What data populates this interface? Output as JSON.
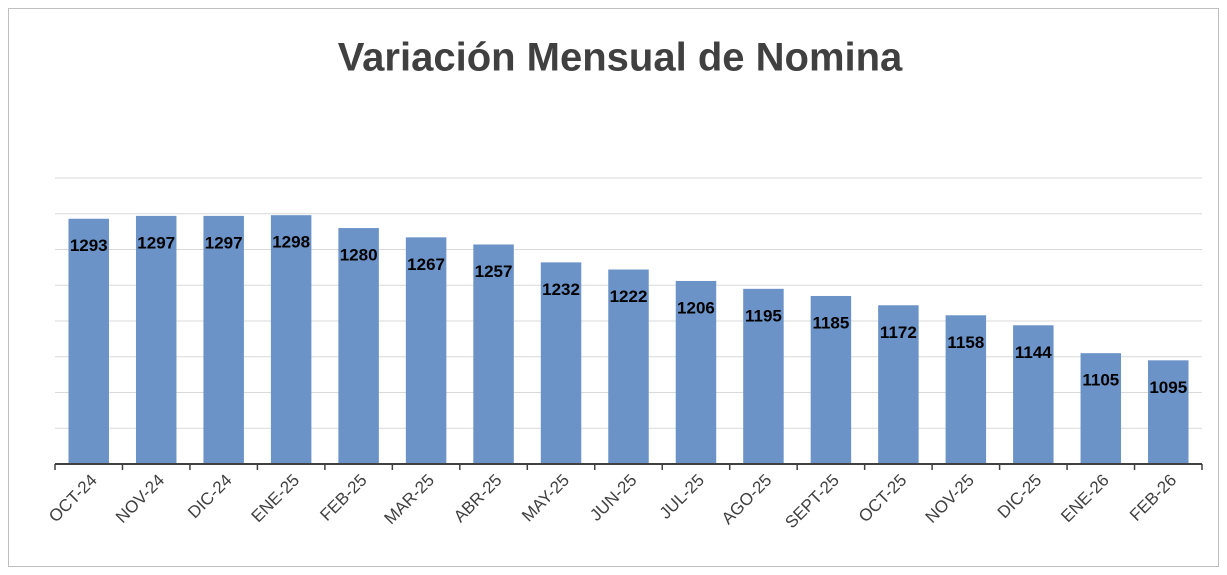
{
  "chart_data": {
    "type": "bar",
    "title": "Variación Mensual de Nomina",
    "categories": [
      "OCT-24",
      "NOV-24",
      "DIC-24",
      "ENE-25",
      "FEB-25",
      "MAR-25",
      "ABR-25",
      "MAY-25",
      "JUN-25",
      "JUL-25",
      "AGO-25",
      "SEPT-25",
      "OCT-25",
      "NOV-25",
      "DIC-25",
      "ENE-26",
      "FEB-26"
    ],
    "values": [
      1293,
      1297,
      1297,
      1298,
      1280,
      1267,
      1257,
      1232,
      1222,
      1206,
      1195,
      1185,
      1172,
      1158,
      1144,
      1105,
      1095
    ],
    "color": "#6b93c8",
    "ylim": [
      950,
      1350
    ],
    "yticks": [
      1000,
      1050,
      1100,
      1150,
      1200,
      1250,
      1300,
      1350
    ],
    "grid": true
  }
}
